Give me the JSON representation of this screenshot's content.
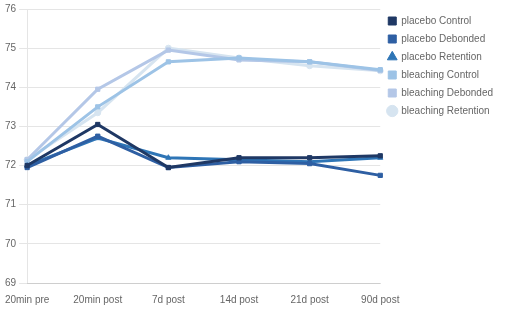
{
  "chart_data": {
    "type": "line",
    "categories": [
      "20min pre",
      "20min post",
      "7d post",
      "14d post",
      "21d post",
      "90d post"
    ],
    "series": [
      {
        "name": "placebo Control",
        "color": "#1f3864",
        "marker": "square",
        "values": [
          72.0,
          73.05,
          71.95,
          72.2,
          72.2,
          72.25
        ]
      },
      {
        "name": "placebo Debonded",
        "color": "#2e5fa3",
        "marker": "square",
        "values": [
          71.95,
          72.75,
          71.95,
          72.1,
          72.05,
          71.75
        ]
      },
      {
        "name": "placebo Retention",
        "color": "#2e75b6",
        "marker": "triangle",
        "values": [
          72.0,
          72.7,
          72.2,
          72.15,
          72.1,
          72.2
        ]
      },
      {
        "name": "bleaching Control",
        "color": "#9dc3e6",
        "marker": "square",
        "values": [
          72.1,
          73.5,
          74.65,
          74.75,
          74.65,
          74.45
        ]
      },
      {
        "name": "bleaching Debonded",
        "color": "#b4c7e7",
        "marker": "square",
        "values": [
          72.15,
          73.95,
          74.95,
          74.7,
          74.65,
          74.43
        ]
      },
      {
        "name": "bleaching Retention",
        "color": "#d6e4f0",
        "marker": "circle",
        "values": [
          72.15,
          73.35,
          75.0,
          74.75,
          74.55,
          74.42
        ]
      }
    ],
    "ylim": [
      69,
      76
    ],
    "yticks": [
      69,
      70,
      71,
      72,
      73,
      74,
      75,
      76
    ],
    "grid": true,
    "legend": "right"
  }
}
